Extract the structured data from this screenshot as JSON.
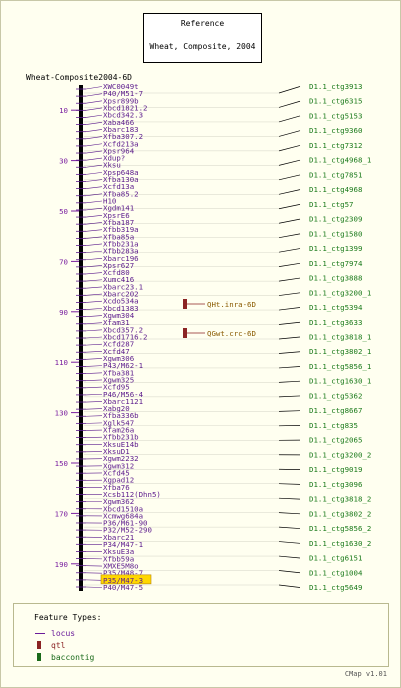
{
  "reference": {
    "title": "Reference",
    "subtitle": "Wheat, Composite, 2004"
  },
  "map_title": "Wheat-Composite2004-6D",
  "axis_ticks": [
    10,
    30,
    50,
    70,
    90,
    110,
    130,
    150,
    170,
    190
  ],
  "markers": [
    "XWC0049t",
    "P40/M51-7",
    "Xpsr899b",
    "Xbcd1821.2",
    "Xbcd342.3",
    "Xaba466",
    "Xbarc183",
    "Xfba307.2",
    "Xcfd213a",
    "Xpsr964",
    "Xdup?",
    "Xksu",
    "Xpsp648a",
    "Xfba130a",
    "Xcfd13a",
    "Xfba85.2",
    "H10",
    "Xgdm141",
    "XpsrE6",
    "Xfba187",
    "Xfbb319a",
    "Xfba85a",
    "Xfbb231a",
    "Xfbb283a",
    "Xbarc196",
    "Xpsr627",
    "Xcfd80",
    "Xumc416",
    "Xbarc23.1",
    "Xbarc202",
    "Xcdo534a",
    "Xbcd1383",
    "Xgwm304",
    "Xfam31",
    "Xbcd357.2",
    "Xbcd1716.2",
    "Xcfd287",
    "Xcfd47",
    "Xgwm306",
    "P43/M62-1",
    "Xfba381",
    "Xgwm325",
    "Xcfd95",
    "P46/M56-4",
    "Xbarc1121",
    "Xabg20",
    "Xfba336b",
    "Xglk547",
    "Xfam26a",
    "Xfbb231b",
    "XksuE14b",
    "XksuD1",
    "Xgwm2232",
    "Xgwm312",
    "Xcfd45",
    "Xgpad12",
    "Xfba76",
    "Xcsb112(Dhn5)",
    "Xgwm362",
    "Xbcd1510a",
    "Xcmwg684a",
    "P36/M61-90",
    "P32/M52-290",
    "Xbarc21",
    "P34/M47-1",
    "XksuE3a",
    "Xfbb59a",
    "XMXE5M8o",
    "P35/M48-7",
    "P35/M47-3",
    "P40/M47-5"
  ],
  "highlighted_marker": "P35/M47-3",
  "qtls": [
    {
      "label": "QHt.inra-6D"
    },
    {
      "label": "QGwt.crc-6D"
    }
  ],
  "contigs": [
    "D1.1_ctg3913",
    "D1.1_ctg6315",
    "D1.1_ctg5153",
    "D1.1_ctg9360",
    "D1.1_ctg7312",
    "D1.1_ctg4968_1",
    "D1.1_ctg7851",
    "D1.1_ctg4968",
    "D1.1_ctg57",
    "D1.1_ctg2309",
    "D1.1_ctg1580",
    "D1.1_ctg1399",
    "D1.1_ctg7974",
    "D1.1_ctg3888",
    "D1.1_ctg3200_1",
    "D1.1_ctg5394",
    "D1.1_ctg3633",
    "D1.1_ctg3818_1",
    "D1.1_ctg3802_1",
    "D1.1_ctg5856_1",
    "D1.1_ctg1630_1",
    "D1.1_ctg5362",
    "D1.1_ctg8667",
    "D1.1_ctg835",
    "D1.1_ctg2065",
    "D1.1_ctg3200_2",
    "D1.1_ctg9019",
    "D1.1_ctg3096",
    "D1.1_ctg3818_2",
    "D1.1_ctg3802_2",
    "D1.1_ctg5856_2",
    "D1.1_ctg1630_2",
    "D1.1_ctg6151",
    "D1.1_ctg1004",
    "D1.1_ctg5649"
  ],
  "legend": {
    "title": "Feature Types:",
    "items": [
      {
        "label": "locus",
        "color": "#6a1b9a"
      },
      {
        "label": "qtl",
        "color": "#8b2323"
      },
      {
        "label": "baccontig",
        "color": "#1a6a1a"
      }
    ]
  },
  "footer": "CMap v1.01",
  "colors": {
    "background": "#fffff0",
    "marker": "#5b1a8c",
    "contig": "#1a7a1a",
    "highlight": "#ffd700"
  }
}
